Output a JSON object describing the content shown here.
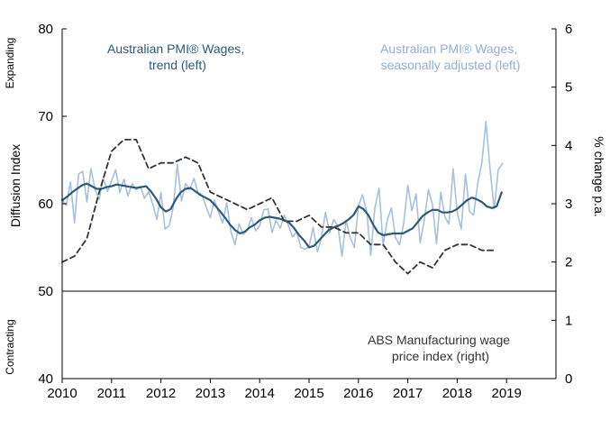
{
  "chart_data": {
    "type": "line",
    "ylabel_left": "Diffusion Index",
    "ylabel_right": "% change p.a.",
    "left_region_labels": {
      "upper": "Expanding",
      "lower": "Contracting"
    },
    "xlim": [
      2010,
      2020
    ],
    "ylim_left": [
      40,
      80
    ],
    "ylim_right": [
      0,
      6
    ],
    "x_ticks": [
      2010,
      2011,
      2012,
      2013,
      2014,
      2015,
      2016,
      2017,
      2018,
      2019
    ],
    "x_tick_labels": [
      "2010",
      "2011",
      "2012",
      "2013",
      "2014",
      "2015",
      "2016",
      "2017",
      "2018",
      "2019"
    ],
    "y_ticks_left": [
      40,
      50,
      60,
      70,
      80
    ],
    "y_tick_labels_left": [
      "40",
      "50",
      "60",
      "70",
      "80"
    ],
    "y_ticks_right": [
      0,
      1,
      2,
      3,
      4,
      5,
      6
    ],
    "y_tick_labels_right": [
      "0",
      "1",
      "2",
      "3",
      "4",
      "5",
      "6"
    ],
    "reference_line_left": 50,
    "grid": false,
    "annotations": [
      {
        "lines": [
          "Australian PMI® Wages,",
          "trend (left)"
        ],
        "color": "#2e5a77"
      },
      {
        "lines": [
          "Australian PMI® Wages,",
          "seasonally adjusted (left)"
        ],
        "color": "#8fb1d6"
      },
      {
        "lines": [
          "ABS Manufacturing wage",
          "price index (right)"
        ],
        "color": "#333333"
      }
    ],
    "series": [
      {
        "name": "Australian PMI® Wages, seasonally adjusted",
        "axis": "left",
        "color": "#a5c1df",
        "style": "solid",
        "x": [
          2010.0,
          2010.083,
          2010.167,
          2010.25,
          2010.333,
          2010.417,
          2010.5,
          2010.583,
          2010.667,
          2010.75,
          2010.833,
          2010.917,
          2011.0,
          2011.083,
          2011.167,
          2011.25,
          2011.333,
          2011.417,
          2011.5,
          2011.583,
          2011.667,
          2011.75,
          2011.833,
          2011.917,
          2012.0,
          2012.083,
          2012.167,
          2012.25,
          2012.333,
          2012.417,
          2012.5,
          2012.583,
          2012.667,
          2012.75,
          2012.833,
          2012.917,
          2013.0,
          2013.083,
          2013.167,
          2013.25,
          2013.333,
          2013.417,
          2013.5,
          2013.583,
          2013.667,
          2013.75,
          2013.833,
          2013.917,
          2014.0,
          2014.083,
          2014.167,
          2014.25,
          2014.333,
          2014.417,
          2014.5,
          2014.583,
          2014.667,
          2014.75,
          2014.833,
          2014.917,
          2015.0,
          2015.083,
          2015.167,
          2015.25,
          2015.333,
          2015.417,
          2015.5,
          2015.583,
          2015.667,
          2015.75,
          2015.833,
          2015.917,
          2016.0,
          2016.083,
          2016.167,
          2016.25,
          2016.333,
          2016.417,
          2016.5,
          2016.583,
          2016.667,
          2016.75,
          2016.833,
          2016.917,
          2017.0,
          2017.083,
          2017.167,
          2017.25,
          2017.333,
          2017.417,
          2017.5,
          2017.583,
          2017.667,
          2017.75,
          2017.833,
          2017.917,
          2018.0,
          2018.083,
          2018.167,
          2018.25,
          2018.333,
          2018.417,
          2018.5,
          2018.583,
          2018.667,
          2018.75,
          2018.833,
          2018.917
        ],
        "values": [
          60.5,
          59.8,
          62.5,
          57.8,
          63.4,
          63.7,
          60.2,
          64.0,
          61.6,
          60.5,
          63.0,
          61.4,
          62.6,
          63.9,
          61.3,
          62.8,
          60.9,
          62.3,
          61.6,
          62.0,
          60.6,
          61.4,
          60.0,
          58.2,
          61.3,
          57.1,
          57.5,
          59.6,
          64.5,
          60.3,
          62.3,
          61.6,
          62.9,
          61.3,
          61.0,
          59.6,
          58.4,
          60.4,
          59.0,
          57.8,
          60.1,
          56.8,
          55.3,
          57.7,
          56.5,
          57.0,
          58.4,
          56.9,
          57.5,
          59.3,
          59.4,
          56.7,
          58.1,
          57.2,
          58.7,
          57.5,
          56.2,
          56.8,
          55.0,
          54.8,
          55.1,
          57.3,
          54.5,
          56.1,
          59.0,
          56.7,
          58.2,
          57.5,
          54.0,
          58.1,
          56.1,
          55.0,
          59.8,
          61.0,
          59.1,
          54.1,
          59.5,
          61.8,
          55.2,
          58.1,
          59.5,
          56.1,
          55.3,
          57.8,
          62.1,
          59.2,
          61.1,
          55.5,
          58.1,
          61.6,
          59.9,
          55.4,
          61.3,
          58.5,
          57.7,
          64.0,
          59.0,
          57.1,
          63.4,
          59.1,
          58.7,
          62.4,
          64.7,
          69.4,
          63.8,
          59.4,
          63.9,
          64.6
        ]
      },
      {
        "name": "Australian PMI® Wages, trend",
        "axis": "left",
        "color": "#2e5a77",
        "style": "solid",
        "x": [
          2010.0,
          2010.1,
          2010.2,
          2010.3,
          2010.4,
          2010.5,
          2010.6,
          2010.7,
          2010.8,
          2010.9,
          2011.0,
          2011.1,
          2011.2,
          2011.3,
          2011.4,
          2011.5,
          2011.6,
          2011.7,
          2011.8,
          2011.9,
          2012.0,
          2012.1,
          2012.2,
          2012.3,
          2012.4,
          2012.5,
          2012.6,
          2012.7,
          2012.8,
          2012.9,
          2013.0,
          2013.1,
          2013.2,
          2013.3,
          2013.4,
          2013.5,
          2013.6,
          2013.7,
          2013.8,
          2013.9,
          2014.0,
          2014.1,
          2014.2,
          2014.3,
          2014.4,
          2014.5,
          2014.6,
          2014.7,
          2014.8,
          2014.9,
          2015.0,
          2015.1,
          2015.2,
          2015.3,
          2015.4,
          2015.5,
          2015.6,
          2015.7,
          2015.8,
          2015.9,
          2016.0,
          2016.1,
          2016.2,
          2016.3,
          2016.4,
          2016.5,
          2016.6,
          2016.7,
          2016.8,
          2016.9,
          2017.0,
          2017.1,
          2017.2,
          2017.3,
          2017.4,
          2017.5,
          2017.6,
          2017.7,
          2017.8,
          2017.9,
          2018.0,
          2018.1,
          2018.2,
          2018.3,
          2018.4,
          2018.5,
          2018.6,
          2018.7,
          2018.8,
          2018.9
        ],
        "values": [
          60.4,
          60.8,
          61.3,
          61.7,
          62.1,
          62.3,
          62.0,
          61.7,
          61.7,
          61.9,
          62.0,
          62.2,
          62.1,
          62.0,
          61.9,
          61.8,
          61.9,
          62.0,
          61.4,
          60.6,
          59.6,
          59.1,
          59.4,
          60.5,
          61.3,
          61.7,
          61.8,
          61.4,
          61.0,
          60.7,
          60.4,
          59.8,
          59.1,
          58.4,
          57.6,
          57.0,
          56.6,
          56.8,
          57.3,
          57.6,
          58.1,
          58.4,
          58.5,
          58.4,
          58.3,
          58.1,
          57.8,
          57.2,
          56.4,
          55.8,
          55.0,
          55.2,
          55.8,
          56.4,
          57.0,
          57.3,
          57.5,
          57.8,
          58.2,
          58.7,
          59.7,
          59.4,
          58.7,
          57.6,
          56.7,
          56.4,
          56.5,
          56.6,
          56.6,
          56.6,
          56.9,
          57.2,
          57.9,
          58.6,
          59.0,
          59.3,
          59.3,
          59.0,
          59.0,
          59.1,
          59.4,
          59.9,
          60.4,
          60.7,
          60.5,
          60.2,
          59.7,
          59.5,
          59.7,
          61.3
        ]
      },
      {
        "name": "ABS Manufacturing wage price index",
        "axis": "right",
        "color": "#333333",
        "style": "dashed",
        "x": [
          2010.0,
          2010.25,
          2010.5,
          2010.75,
          2011.0,
          2011.25,
          2011.5,
          2011.75,
          2012.0,
          2012.25,
          2012.5,
          2012.75,
          2013.0,
          2013.25,
          2013.5,
          2013.75,
          2014.0,
          2014.25,
          2014.5,
          2014.75,
          2015.0,
          2015.25,
          2015.5,
          2015.75,
          2016.0,
          2016.25,
          2016.5,
          2016.75,
          2017.0,
          2017.25,
          2017.5,
          2017.75,
          2018.0,
          2018.25,
          2018.5,
          2018.75
        ],
        "values": [
          2.0,
          2.1,
          2.4,
          3.2,
          3.9,
          4.1,
          4.1,
          3.6,
          3.7,
          3.7,
          3.8,
          3.7,
          3.2,
          3.1,
          3.0,
          2.9,
          3.0,
          3.1,
          2.7,
          2.7,
          2.8,
          2.6,
          2.6,
          2.5,
          2.5,
          2.3,
          2.3,
          2.0,
          1.8,
          2.0,
          1.9,
          2.2,
          2.3,
          2.3,
          2.2,
          2.2
        ]
      }
    ]
  }
}
